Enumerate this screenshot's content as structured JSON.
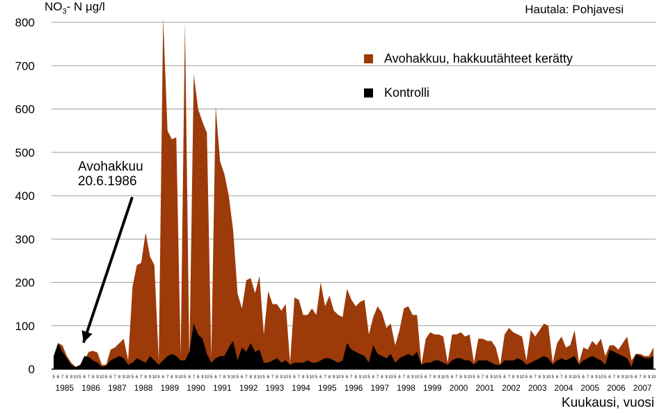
{
  "title": "Hautala: Pohjavesi",
  "annotation": {
    "line1": "Avohakkuu",
    "line2": "20.6.1986"
  },
  "colors": {
    "treatment": "#9C3A0A",
    "control": "#000000",
    "grid": "#9a9a9a"
  },
  "chart_data": {
    "type": "area",
    "ylabel": {
      "main": "NO",
      "sub": "3",
      "rest": "- N µg/l"
    },
    "xlabel": "Kuukausi, vuosi",
    "ylim": [
      0,
      800
    ],
    "yticks": [
      0,
      100,
      200,
      300,
      400,
      500,
      600,
      700,
      800
    ],
    "grid": true,
    "legend_position": "top-right",
    "month_tick_labels": [
      "5",
      "6",
      "7",
      "8",
      "9",
      "10"
    ],
    "years": [
      "1985",
      "1986",
      "1987",
      "1988",
      "1989",
      "1990",
      "1991",
      "1992",
      "1993",
      "1994",
      "1995",
      "1996",
      "1997",
      "1998",
      "1999",
      "2000",
      "2001",
      "2002",
      "2003",
      "2004",
      "2005",
      "2006",
      "2007"
    ],
    "series": [
      {
        "name": "Avohakkuu, hakkuutähteet kerätty",
        "values": [
          [
            25,
            60,
            55,
            30,
            15,
            5
          ],
          [
            10,
            20,
            40,
            42,
            38,
            10
          ],
          [
            10,
            45,
            50,
            60,
            70,
            20
          ],
          [
            190,
            240,
            245,
            315,
            260,
            240
          ],
          [
            20,
            810,
            550,
            530,
            535,
            30
          ],
          [
            800,
            20,
            680,
            600,
            570,
            545
          ],
          [
            25,
            605,
            480,
            450,
            400,
            320
          ],
          [
            175,
            140,
            205,
            210,
            175,
            215
          ],
          [
            80,
            180,
            150,
            150,
            135,
            150
          ],
          [
            15,
            165,
            160,
            125,
            125,
            140
          ],
          [
            125,
            200,
            145,
            170,
            135,
            125
          ],
          [
            120,
            185,
            160,
            145,
            155,
            160
          ],
          [
            80,
            120,
            145,
            130,
            95,
            105
          ],
          [
            55,
            90,
            140,
            145,
            125,
            125
          ],
          [
            10,
            70,
            85,
            80,
            80,
            75
          ],
          [
            15,
            80,
            80,
            85,
            75,
            80
          ],
          [
            15,
            70,
            70,
            65,
            65,
            50
          ],
          [
            10,
            80,
            95,
            85,
            80,
            75
          ],
          [
            20,
            90,
            75,
            90,
            105,
            100
          ],
          [
            15,
            60,
            75,
            50,
            55,
            90
          ],
          [
            15,
            50,
            45,
            65,
            55,
            70
          ],
          [
            30,
            55,
            55,
            45,
            60,
            75
          ],
          [
            20,
            35,
            35,
            30,
            30,
            50
          ]
        ]
      },
      {
        "name": "Kontrolli",
        "values": [
          [
            30,
            60,
            40,
            25,
            10,
            5
          ],
          [
            8,
            30,
            28,
            20,
            15,
            5
          ],
          [
            8,
            20,
            25,
            30,
            25,
            10
          ],
          [
            15,
            25,
            20,
            15,
            30,
            20
          ],
          [
            10,
            20,
            30,
            35,
            30,
            20
          ],
          [
            20,
            40,
            105,
            80,
            70,
            35
          ],
          [
            15,
            25,
            30,
            30,
            50,
            65
          ],
          [
            20,
            50,
            40,
            60,
            40,
            45
          ],
          [
            15,
            15,
            20,
            25,
            15,
            20
          ],
          [
            10,
            15,
            15,
            15,
            20,
            15
          ],
          [
            15,
            20,
            25,
            25,
            20,
            15
          ],
          [
            20,
            60,
            45,
            40,
            35,
            30
          ],
          [
            15,
            55,
            35,
            30,
            25,
            35
          ],
          [
            15,
            25,
            30,
            35,
            30,
            40
          ],
          [
            10,
            15,
            15,
            20,
            20,
            15
          ],
          [
            10,
            20,
            25,
            25,
            20,
            20
          ],
          [
            10,
            20,
            20,
            20,
            15,
            10
          ],
          [
            10,
            20,
            20,
            20,
            25,
            20
          ],
          [
            10,
            15,
            20,
            25,
            30,
            25
          ],
          [
            10,
            20,
            25,
            20,
            25,
            30
          ],
          [
            10,
            20,
            25,
            30,
            25,
            20
          ],
          [
            10,
            45,
            40,
            35,
            30,
            25
          ],
          [
            5,
            35,
            30,
            25,
            25,
            30
          ]
        ]
      }
    ]
  }
}
